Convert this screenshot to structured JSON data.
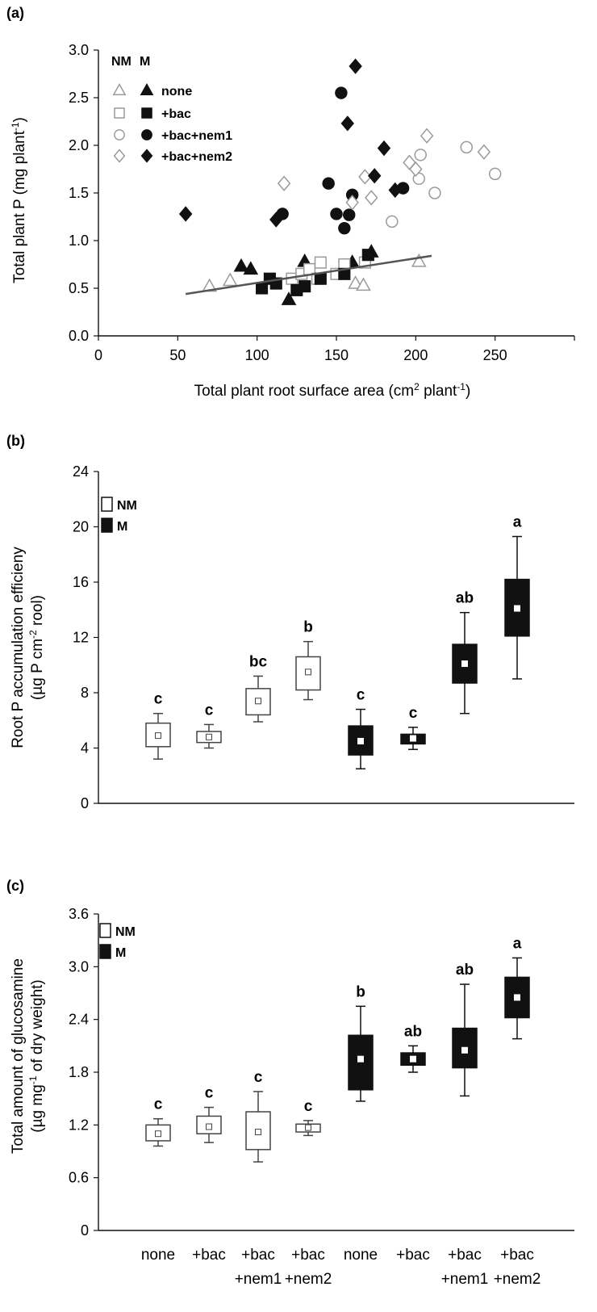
{
  "chart_data": [
    {
      "panel": "(a)",
      "type": "scatter",
      "xlabel_main": "Total plant root surface area (cm",
      "xlabel_sup": "2",
      "xlabel_mid": " plant",
      "xlabel_sup2": "-1",
      "xlabel_end": ")",
      "ylabel_main": "Total plant P (mg plant",
      "ylabel_sup": "-1",
      "ylabel_end": ")",
      "xlim": [
        0,
        300
      ],
      "ylim": [
        0,
        3.0
      ],
      "xticks": [
        0,
        50,
        100,
        150,
        200,
        250
      ],
      "yticks": [
        "0.0",
        "0.5",
        "1.0",
        "1.5",
        "2.0",
        "2.5",
        "3.0"
      ],
      "legend_header_nm": "NM",
      "legend_header_m": "M",
      "legend_labels": [
        "none",
        "+bac",
        "+bac+nem1",
        "+bac+nem2"
      ],
      "series": [
        {
          "name": "none",
          "group": "NM",
          "marker": "triangle",
          "filled": false,
          "points": [
            [
              70,
              0.52
            ],
            [
              83,
              0.58
            ],
            [
              162,
              0.55
            ],
            [
              167,
              0.53
            ],
            [
              202,
              0.78
            ]
          ]
        },
        {
          "name": "none",
          "group": "M",
          "marker": "triangle",
          "filled": true,
          "points": [
            [
              90,
              0.73
            ],
            [
              96,
              0.7
            ],
            [
              120,
              0.38
            ],
            [
              130,
              0.78
            ],
            [
              160,
              0.77
            ],
            [
              172,
              0.88
            ]
          ]
        },
        {
          "name": "+bac",
          "group": "NM",
          "marker": "square",
          "filled": false,
          "points": [
            [
              122,
              0.6
            ],
            [
              128,
              0.65
            ],
            [
              133,
              0.7
            ],
            [
              138,
              0.6
            ],
            [
              140,
              0.77
            ],
            [
              150,
              0.65
            ],
            [
              155,
              0.75
            ],
            [
              168,
              0.77
            ]
          ]
        },
        {
          "name": "+bac",
          "group": "M",
          "marker": "square",
          "filled": true,
          "points": [
            [
              103,
              0.5
            ],
            [
              108,
              0.6
            ],
            [
              112,
              0.55
            ],
            [
              125,
              0.48
            ],
            [
              130,
              0.52
            ],
            [
              140,
              0.6
            ],
            [
              155,
              0.65
            ],
            [
              170,
              0.85
            ]
          ]
        },
        {
          "name": "+bac+nem1",
          "group": "NM",
          "marker": "circle",
          "filled": false,
          "points": [
            [
              185,
              1.2
            ],
            [
              202,
              1.65
            ],
            [
              203,
              1.9
            ],
            [
              212,
              1.5
            ],
            [
              232,
              1.98
            ],
            [
              250,
              1.7
            ]
          ]
        },
        {
          "name": "+bac+nem1",
          "group": "M",
          "marker": "circle",
          "filled": true,
          "points": [
            [
              116,
              1.28
            ],
            [
              145,
              1.6
            ],
            [
              150,
              1.28
            ],
            [
              153,
              2.55
            ],
            [
              155,
              1.13
            ],
            [
              158,
              1.27
            ],
            [
              160,
              1.48
            ],
            [
              192,
              1.55
            ]
          ]
        },
        {
          "name": "+bac+nem2",
          "group": "NM",
          "marker": "diamond",
          "filled": false,
          "points": [
            [
              117,
              1.6
            ],
            [
              160,
              1.4
            ],
            [
              168,
              1.67
            ],
            [
              172,
              1.45
            ],
            [
              196,
              1.82
            ],
            [
              200,
              1.75
            ],
            [
              207,
              2.1
            ],
            [
              243,
              1.93
            ]
          ]
        },
        {
          "name": "+bac+nem2",
          "group": "M",
          "marker": "diamond",
          "filled": true,
          "points": [
            [
              55,
              1.28
            ],
            [
              112,
              1.22
            ],
            [
              157,
              2.23
            ],
            [
              162,
              2.83
            ],
            [
              174,
              1.68
            ],
            [
              180,
              1.97
            ],
            [
              187,
              1.53
            ]
          ]
        }
      ],
      "trendline": [
        [
          55,
          0.44
        ],
        [
          210,
          0.84
        ]
      ]
    },
    {
      "panel": "(b)",
      "type": "box",
      "ylabel_line1": "Root P accumulation efficieny",
      "ylabel_line2_a": "(µg P cm",
      "ylabel_line2_sup": "-2",
      "ylabel_line2_b": " rool)",
      "ylim": [
        0,
        24
      ],
      "yticks": [
        "0",
        "4",
        "8",
        "12",
        "16",
        "20",
        "24"
      ],
      "legend": [
        "NM",
        "M"
      ],
      "boxes": [
        {
          "group": "NM",
          "min": 3.2,
          "q1": 4.1,
          "median": 4.9,
          "q3": 5.8,
          "max": 6.5,
          "letter": "c"
        },
        {
          "group": "NM",
          "min": 4.0,
          "q1": 4.4,
          "median": 4.8,
          "q3": 5.2,
          "max": 5.7,
          "letter": "c"
        },
        {
          "group": "NM",
          "min": 5.9,
          "q1": 6.4,
          "median": 7.4,
          "q3": 8.3,
          "max": 9.2,
          "letter": "bc"
        },
        {
          "group": "NM",
          "min": 7.5,
          "q1": 8.2,
          "median": 9.5,
          "q3": 10.6,
          "max": 11.7,
          "letter": "b"
        },
        {
          "group": "M",
          "min": 2.5,
          "q1": 3.5,
          "median": 4.5,
          "q3": 5.6,
          "max": 6.8,
          "letter": "c"
        },
        {
          "group": "M",
          "min": 3.9,
          "q1": 4.3,
          "median": 4.7,
          "q3": 5.0,
          "max": 5.5,
          "letter": "c"
        },
        {
          "group": "M",
          "min": 6.5,
          "q1": 8.7,
          "median": 10.1,
          "q3": 11.5,
          "max": 13.8,
          "letter": "ab"
        },
        {
          "group": "M",
          "min": 9.0,
          "q1": 12.1,
          "median": 14.1,
          "q3": 16.2,
          "max": 19.3,
          "letter": "a"
        }
      ]
    },
    {
      "panel": "(c)",
      "type": "box",
      "ylabel_line1": "Total amount of glucosamine",
      "ylabel_line2_a": "(µg mg",
      "ylabel_line2_sup": "-1",
      "ylabel_line2_b": " of dry weight)",
      "ylim": [
        0,
        3.6
      ],
      "yticks": [
        "0",
        "0.6",
        "1.2",
        "1.8",
        "2.4",
        "3.0",
        "3.6"
      ],
      "legend": [
        "NM",
        "M"
      ],
      "categories_line1": [
        "none",
        "+bac",
        "+bac",
        "+bac",
        "none",
        "+bac",
        "+bac",
        "+bac"
      ],
      "categories_line2": [
        "",
        "",
        "+nem1",
        "+nem2",
        "",
        "",
        "+nem1",
        "+nem2"
      ],
      "boxes": [
        {
          "group": "NM",
          "min": 0.96,
          "q1": 1.02,
          "median": 1.1,
          "q3": 1.2,
          "max": 1.27,
          "letter": "c"
        },
        {
          "group": "NM",
          "min": 1.0,
          "q1": 1.1,
          "median": 1.18,
          "q3": 1.3,
          "max": 1.4,
          "letter": "c"
        },
        {
          "group": "NM",
          "min": 0.78,
          "q1": 0.92,
          "median": 1.12,
          "q3": 1.35,
          "max": 1.58,
          "letter": "c"
        },
        {
          "group": "NM",
          "min": 1.08,
          "q1": 1.12,
          "median": 1.17,
          "q3": 1.21,
          "max": 1.25,
          "letter": "c"
        },
        {
          "group": "M",
          "min": 1.47,
          "q1": 1.6,
          "median": 1.95,
          "q3": 2.22,
          "max": 2.55,
          "letter": "b"
        },
        {
          "group": "M",
          "min": 1.8,
          "q1": 1.88,
          "median": 1.95,
          "q3": 2.02,
          "max": 2.1,
          "letter": "ab"
        },
        {
          "group": "M",
          "min": 1.53,
          "q1": 1.85,
          "median": 2.05,
          "q3": 2.3,
          "max": 2.8,
          "letter": "ab"
        },
        {
          "group": "M",
          "min": 2.18,
          "q1": 2.42,
          "median": 2.65,
          "q3": 2.88,
          "max": 3.1,
          "letter": "a"
        }
      ]
    }
  ]
}
